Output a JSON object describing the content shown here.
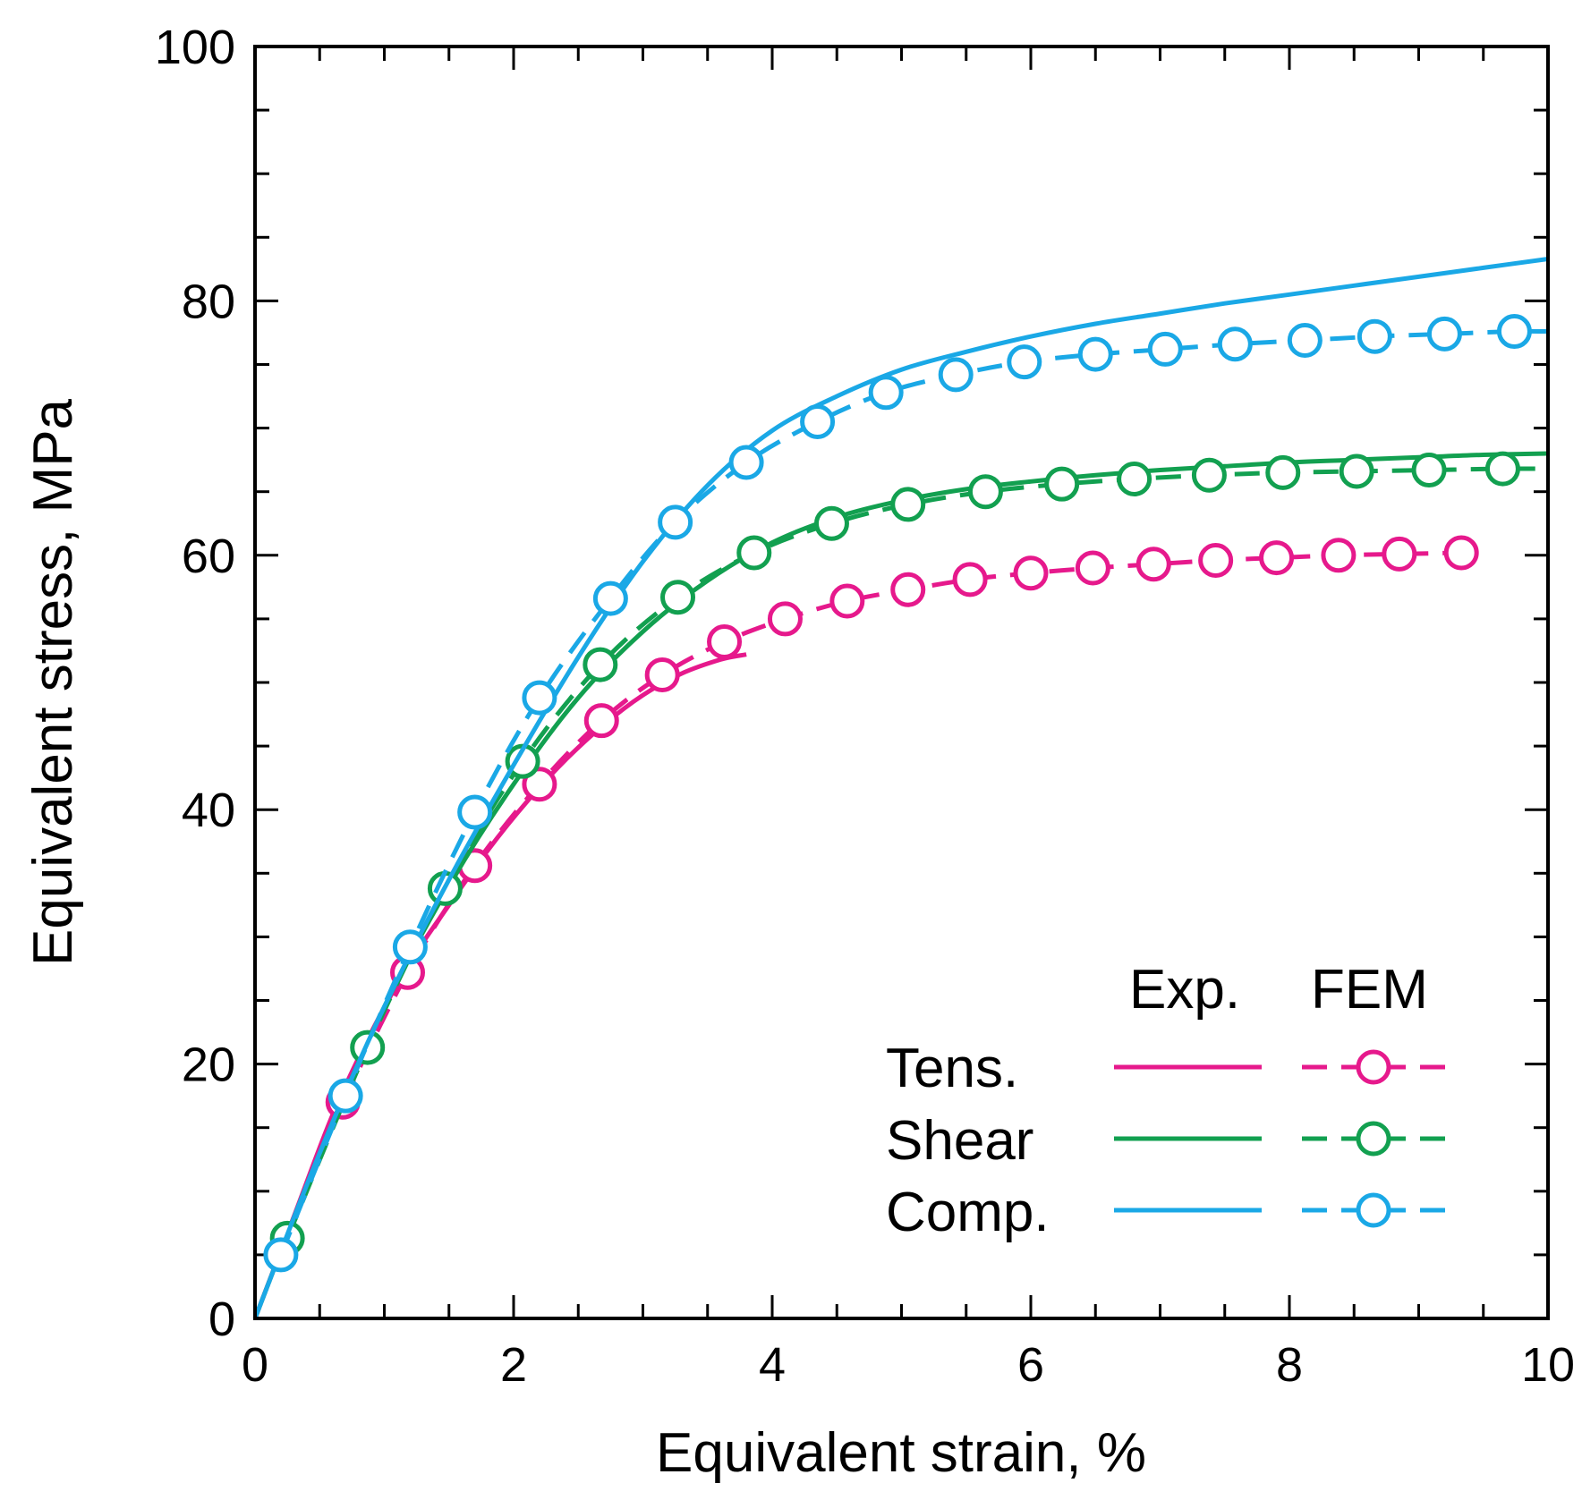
{
  "chart_data": {
    "type": "line",
    "title": "",
    "xlabel": "Equivalent strain, %",
    "ylabel": "Equivalent stress, MPa",
    "xlim": [
      0,
      10
    ],
    "ylim": [
      0,
      100
    ],
    "x_ticks": [
      0,
      2,
      4,
      6,
      8,
      10
    ],
    "y_ticks": [
      0,
      20,
      40,
      60,
      80,
      100
    ],
    "x_tick_labels": [
      "0",
      "2",
      "4",
      "6",
      "8",
      "10"
    ],
    "y_tick_labels": [
      "0",
      "20",
      "40",
      "60",
      "80",
      "100"
    ],
    "grid": false,
    "legend": {
      "placement": "bottom-right",
      "header_exp": "Exp.",
      "header_fem": "FEM",
      "rows": [
        "Tens.",
        "Shear",
        "Comp."
      ]
    },
    "colors": {
      "tens": "#e6198c",
      "shear": "#12a050",
      "comp": "#1aa8e6"
    },
    "series": [
      {
        "name": "Tens.",
        "kind": "Exp.",
        "color_key": "tens",
        "x": [
          0,
          0.3,
          0.6,
          0.9,
          1.2,
          1.5,
          1.8,
          2.1,
          2.4,
          2.7,
          3.0,
          3.3,
          3.6,
          3.8
        ],
        "y": [
          0,
          8.0,
          16.0,
          22.5,
          28.0,
          32.5,
          36.8,
          40.6,
          43.9,
          46.7,
          49.0,
          50.7,
          51.8,
          52.2
        ]
      },
      {
        "name": "Tens.",
        "kind": "FEM",
        "color_key": "tens",
        "x": [
          0.68,
          1.18,
          1.7,
          2.2,
          2.68,
          3.15,
          3.63,
          4.1,
          4.58,
          5.05,
          5.53,
          6.0,
          6.48,
          6.95,
          7.43,
          7.9,
          8.38,
          8.85,
          9.33
        ],
        "y": [
          17.0,
          27.2,
          35.6,
          42.0,
          47.0,
          50.6,
          53.2,
          55.0,
          56.4,
          57.3,
          58.1,
          58.6,
          59.0,
          59.3,
          59.6,
          59.8,
          60.0,
          60.1,
          60.2
        ]
      },
      {
        "name": "Shear",
        "kind": "Exp.",
        "color_key": "shear",
        "x": [
          0,
          0.5,
          1.0,
          1.5,
          2.0,
          2.5,
          3.0,
          3.5,
          4.0,
          4.5,
          5.0,
          5.5,
          6.0,
          6.5,
          7.0,
          7.5,
          8.0,
          8.5,
          9.0,
          9.5,
          10.0
        ],
        "y": [
          0,
          13.0,
          24.5,
          34.0,
          42.0,
          48.8,
          54.0,
          58.0,
          61.0,
          63.0,
          64.3,
          65.2,
          65.8,
          66.3,
          66.7,
          67.0,
          67.3,
          67.5,
          67.7,
          67.9,
          68.0
        ]
      },
      {
        "name": "Shear",
        "kind": "FEM",
        "color_key": "shear",
        "x": [
          0.25,
          0.87,
          1.47,
          2.07,
          2.67,
          3.27,
          3.86,
          4.46,
          5.05,
          5.65,
          6.24,
          6.8,
          7.38,
          7.95,
          8.52,
          9.08,
          9.65,
          10.0
        ],
        "y": [
          6.3,
          21.3,
          33.8,
          43.8,
          51.4,
          56.7,
          60.2,
          62.5,
          64.0,
          65.0,
          65.6,
          66.0,
          66.3,
          66.5,
          66.6,
          66.7,
          66.8,
          66.8
        ]
      },
      {
        "name": "Comp.",
        "kind": "Exp.",
        "color_key": "comp",
        "x": [
          0,
          0.5,
          1.0,
          1.5,
          2.0,
          2.5,
          3.0,
          3.5,
          4.0,
          4.5,
          5.0,
          5.5,
          6.0,
          6.5,
          7.0,
          7.5,
          8.0,
          8.5,
          9.0,
          9.5,
          10.0
        ],
        "y": [
          0,
          13.0,
          24.5,
          34.5,
          43.5,
          52.0,
          59.5,
          65.5,
          69.8,
          72.5,
          74.6,
          76.0,
          77.2,
          78.2,
          79.0,
          79.8,
          80.5,
          81.2,
          81.9,
          82.6,
          83.3
        ]
      },
      {
        "name": "Comp.",
        "kind": "FEM",
        "color_key": "comp",
        "x": [
          0.2,
          0.7,
          1.2,
          1.7,
          2.2,
          2.75,
          3.25,
          3.8,
          4.35,
          4.88,
          5.42,
          5.95,
          6.5,
          7.04,
          7.58,
          8.12,
          8.66,
          9.2,
          9.74,
          10.0
        ],
        "y": [
          5.0,
          17.5,
          29.2,
          39.8,
          48.8,
          56.6,
          62.6,
          67.3,
          70.5,
          72.8,
          74.2,
          75.2,
          75.8,
          76.2,
          76.6,
          76.9,
          77.2,
          77.4,
          77.6,
          77.6
        ]
      }
    ]
  }
}
